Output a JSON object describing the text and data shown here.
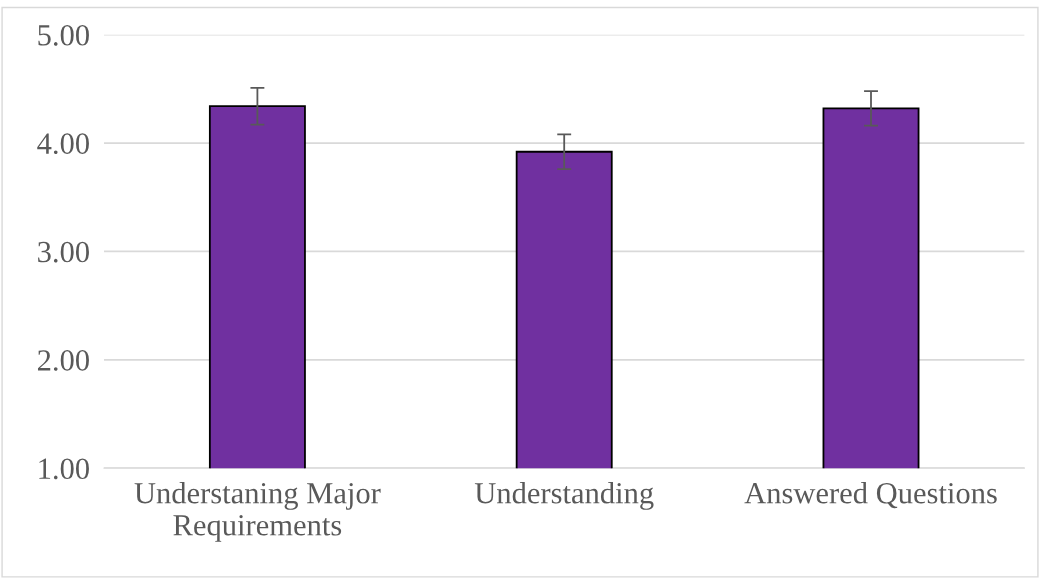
{
  "chart_data": {
    "type": "bar",
    "categories": [
      "Understaning Major\nRequirements",
      "Understanding",
      "Answered Questions"
    ],
    "series": [
      {
        "color": "#7030a0",
        "values": [
          4.34,
          3.92,
          4.32
        ],
        "errors": [
          0.17,
          0.16,
          0.16
        ]
      }
    ],
    "ylim": [
      1,
      5
    ],
    "yticks": [
      {
        "value": 1,
        "label": "1.00"
      },
      {
        "value": 2,
        "label": "2.00"
      },
      {
        "value": 3,
        "label": "3.00"
      },
      {
        "value": 4,
        "label": "4.00"
      },
      {
        "value": 5,
        "label": "5.00"
      }
    ],
    "grid": "y",
    "legend": false
  }
}
